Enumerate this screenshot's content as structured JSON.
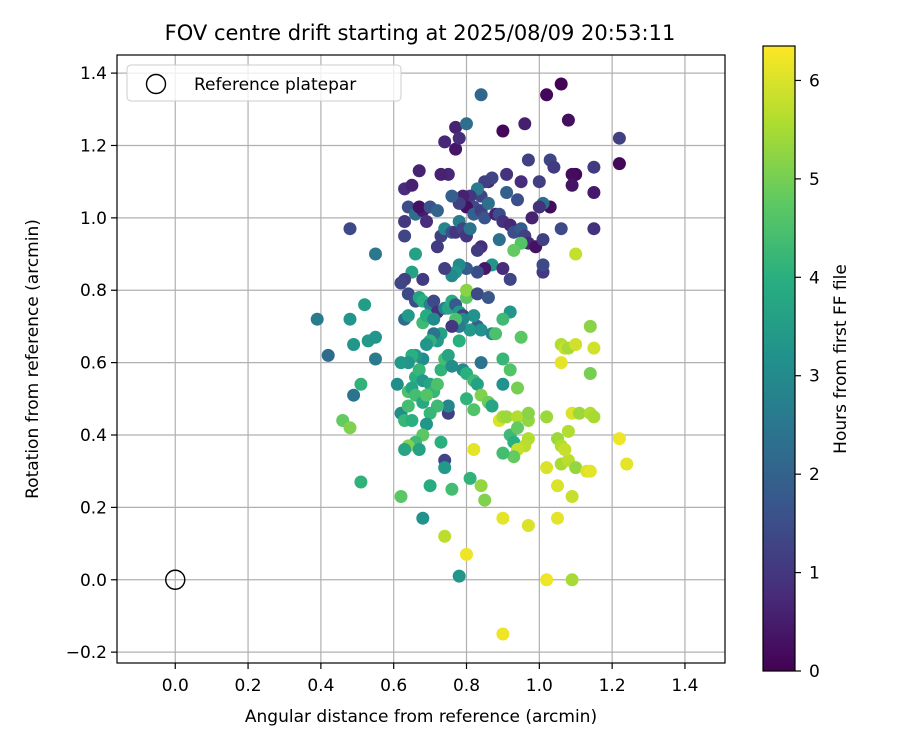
{
  "chart_data": {
    "type": "scatter",
    "title": "FOV centre drift starting at 2025/08/09 20:53:11",
    "xlabel": "Angular distance from reference (arcmin)",
    "ylabel": "Rotation from reference (arcmin)",
    "xlim": [
      -0.16,
      1.51
    ],
    "ylim": [
      -0.23,
      1.45
    ],
    "x_ticks": [
      "0.0",
      "0.2",
      "0.4",
      "0.6",
      "0.8",
      "1.0",
      "1.2",
      "1.4"
    ],
    "y_ticks": [
      "−0.2",
      "0.0",
      "0.2",
      "0.4",
      "0.6",
      "0.8",
      "1.0",
      "1.2",
      "1.4"
    ],
    "grid": true,
    "legend": {
      "position": "top-left",
      "entries": [
        "Reference platepar"
      ]
    },
    "reference_point": {
      "x": 0.0,
      "y": 0.0
    },
    "colorbar": {
      "label": "Hours from first FF file",
      "range": [
        0,
        6.35
      ],
      "ticks": [
        "0",
        "1",
        "2",
        "3",
        "4",
        "5",
        "6"
      ],
      "colormap": "viridis"
    },
    "points": [
      [
        1.06,
        1.37,
        0.05
      ],
      [
        1.02,
        1.34,
        0.12
      ],
      [
        1.08,
        1.27,
        0.25
      ],
      [
        0.9,
        1.24,
        0.1
      ],
      [
        0.96,
        1.26,
        0.55
      ],
      [
        1.22,
        1.22,
        1.2
      ],
      [
        1.22,
        1.15,
        0.1
      ],
      [
        1.15,
        1.14,
        1.1
      ],
      [
        1.1,
        1.12,
        0.1
      ],
      [
        1.09,
        1.12,
        0.2
      ],
      [
        1.09,
        1.09,
        0.35
      ],
      [
        1.15,
        1.07,
        0.45
      ],
      [
        1.03,
        1.16,
        1.3
      ],
      [
        1.04,
        1.14,
        1.1
      ],
      [
        0.97,
        1.16,
        1.2
      ],
      [
        0.95,
        1.1,
        0.8
      ],
      [
        1.0,
        1.1,
        1.15
      ],
      [
        1.03,
        1.03,
        0.2
      ],
      [
        1.01,
        1.04,
        2.3
      ],
      [
        1.0,
        1.03,
        0.9
      ],
      [
        0.94,
        1.05,
        1.5
      ],
      [
        0.91,
        1.07,
        1.9
      ],
      [
        0.91,
        1.12,
        0.9
      ],
      [
        0.86,
        1.1,
        0.7
      ],
      [
        0.87,
        1.11,
        1.3
      ],
      [
        0.85,
        1.1,
        1.2
      ],
      [
        0.84,
        1.06,
        1.3
      ],
      [
        0.83,
        1.08,
        2.6
      ],
      [
        0.81,
        1.06,
        1.0
      ],
      [
        0.82,
        1.03,
        1.4
      ],
      [
        0.8,
        1.03,
        0.3
      ],
      [
        0.79,
        1.06,
        0.6
      ],
      [
        0.78,
        1.04,
        1.2
      ],
      [
        0.76,
        1.06,
        1.9
      ],
      [
        0.75,
        1.12,
        0.7
      ],
      [
        0.73,
        1.12,
        0.6
      ],
      [
        0.67,
        1.13,
        0.6
      ],
      [
        0.63,
        1.08,
        0.8
      ],
      [
        0.65,
        1.09,
        0.6
      ],
      [
        0.77,
        1.25,
        0.6
      ],
      [
        0.8,
        1.26,
        2.3
      ],
      [
        0.77,
        1.19,
        0.4
      ],
      [
        0.78,
        1.22,
        0.8
      ],
      [
        0.74,
        1.21,
        0.7
      ],
      [
        0.84,
        1.34,
        2.1
      ],
      [
        0.63,
        0.99,
        1.0
      ],
      [
        0.63,
        0.95,
        1.3
      ],
      [
        0.64,
        1.03,
        1.5
      ],
      [
        0.66,
        1.01,
        2.3
      ],
      [
        0.68,
        1.02,
        0.5
      ],
      [
        0.67,
        1.03,
        0.3
      ],
      [
        0.69,
        0.99,
        0.8
      ],
      [
        0.7,
        1.03,
        1.6
      ],
      [
        0.72,
        1.02,
        2.0
      ],
      [
        0.73,
        0.95,
        1.2
      ],
      [
        0.74,
        0.97,
        2.9
      ],
      [
        0.76,
        0.96,
        1.6
      ],
      [
        0.77,
        0.96,
        1.0
      ],
      [
        0.78,
        0.99,
        2.7
      ],
      [
        0.79,
        0.97,
        1.3
      ],
      [
        0.8,
        0.95,
        1.0
      ],
      [
        0.81,
        0.97,
        2.4
      ],
      [
        0.82,
        1.01,
        1.9
      ],
      [
        0.84,
        1.02,
        1.2
      ],
      [
        0.85,
        1.0,
        1.6
      ],
      [
        0.86,
        1.04,
        2.3
      ],
      [
        0.88,
        1.01,
        0.6
      ],
      [
        0.89,
        1.01,
        1.5
      ],
      [
        0.9,
        0.99,
        0.9
      ],
      [
        0.92,
        0.98,
        0.7
      ],
      [
        0.93,
        0.96,
        1.5
      ],
      [
        0.95,
        0.97,
        1.8
      ],
      [
        0.96,
        0.95,
        1.2
      ],
      [
        0.97,
        0.93,
        0.7
      ],
      [
        0.95,
        0.93,
        4.6
      ],
      [
        0.93,
        0.91,
        4.8
      ],
      [
        0.89,
        0.94,
        2.3
      ],
      [
        0.87,
        0.87,
        3.3
      ],
      [
        0.84,
        0.92,
        0.8
      ],
      [
        0.83,
        0.91,
        1.1
      ],
      [
        0.85,
        0.86,
        0.4
      ],
      [
        0.83,
        0.85,
        1.5
      ],
      [
        0.8,
        0.86,
        1.8
      ],
      [
        0.78,
        0.87,
        3.0
      ],
      [
        0.77,
        0.85,
        3.3
      ],
      [
        0.76,
        0.84,
        3.0
      ],
      [
        0.74,
        0.86,
        1.2
      ],
      [
        0.72,
        0.92,
        1.1
      ],
      [
        0.66,
        0.9,
        3.6
      ],
      [
        0.65,
        0.85,
        3.6
      ],
      [
        0.63,
        0.83,
        1.2
      ],
      [
        0.62,
        0.82,
        1.3
      ],
      [
        0.68,
        0.83,
        1.1
      ],
      [
        0.64,
        0.79,
        1.4
      ],
      [
        0.66,
        0.77,
        1.5
      ],
      [
        0.67,
        0.78,
        3.6
      ],
      [
        0.68,
        0.77,
        4.0
      ],
      [
        0.7,
        0.76,
        2.8
      ],
      [
        0.71,
        0.77,
        1.4
      ],
      [
        0.72,
        0.74,
        0.9
      ],
      [
        0.74,
        0.75,
        2.8
      ],
      [
        0.75,
        0.75,
        3.7
      ],
      [
        0.76,
        0.77,
        3.9
      ],
      [
        0.77,
        0.76,
        1.8
      ],
      [
        0.78,
        0.74,
        3.4
      ],
      [
        0.79,
        0.73,
        1.2
      ],
      [
        0.8,
        0.78,
        4.7
      ],
      [
        0.8,
        0.8,
        5.2
      ],
      [
        0.83,
        0.79,
        1.4
      ],
      [
        0.86,
        0.78,
        1.7
      ],
      [
        0.83,
        0.7,
        1.9
      ],
      [
        0.82,
        0.73,
        3.2
      ],
      [
        0.81,
        0.69,
        3.4
      ],
      [
        0.79,
        0.72,
        3.0
      ],
      [
        0.78,
        0.7,
        2.6
      ],
      [
        0.77,
        0.72,
        4.5
      ],
      [
        0.76,
        0.7,
        1.0
      ],
      [
        0.73,
        0.68,
        3.6
      ],
      [
        0.72,
        0.66,
        3.4
      ],
      [
        0.71,
        0.68,
        2.4
      ],
      [
        0.7,
        0.66,
        4.1
      ],
      [
        0.69,
        0.65,
        3.3
      ],
      [
        0.68,
        0.61,
        3.1
      ],
      [
        0.66,
        0.62,
        3.3
      ],
      [
        0.65,
        0.62,
        4.0
      ],
      [
        0.64,
        0.6,
        3.3
      ],
      [
        0.66,
        0.56,
        4.0
      ],
      [
        0.67,
        0.58,
        4.2
      ],
      [
        0.68,
        0.55,
        3.4
      ],
      [
        0.7,
        0.54,
        3.7
      ],
      [
        0.71,
        0.52,
        4.2
      ],
      [
        0.72,
        0.54,
        4.5
      ],
      [
        0.73,
        0.58,
        4.1
      ],
      [
        0.74,
        0.61,
        4.4
      ],
      [
        0.75,
        0.62,
        3.7
      ],
      [
        0.76,
        0.59,
        3.1
      ],
      [
        0.78,
        0.66,
        4.0
      ],
      [
        0.79,
        0.58,
        3.0
      ],
      [
        0.8,
        0.57,
        4.0
      ],
      [
        0.82,
        0.55,
        4.3
      ],
      [
        0.83,
        0.54,
        3.6
      ],
      [
        0.84,
        0.6,
        2.4
      ],
      [
        0.84,
        0.69,
        3.2
      ],
      [
        0.87,
        0.68,
        2.9
      ],
      [
        0.88,
        0.68,
        4.5
      ],
      [
        0.9,
        0.61,
        4.2
      ],
      [
        0.92,
        0.58,
        4.6
      ],
      [
        0.92,
        0.74,
        3.3
      ],
      [
        0.95,
        0.67,
        4.7
      ],
      [
        0.9,
        0.72,
        4.3
      ],
      [
        0.8,
        0.5,
        4.1
      ],
      [
        0.82,
        0.47,
        4.6
      ],
      [
        0.84,
        0.51,
        5.1
      ],
      [
        0.86,
        0.49,
        4.9
      ],
      [
        0.87,
        0.48,
        3.7
      ],
      [
        0.89,
        0.44,
        6.0
      ],
      [
        0.9,
        0.45,
        5.5
      ],
      [
        0.91,
        0.45,
        5.4
      ],
      [
        0.92,
        0.4,
        4.3
      ],
      [
        0.93,
        0.38,
        4.0
      ],
      [
        0.94,
        0.45,
        5.6
      ],
      [
        0.94,
        0.42,
        4.8
      ],
      [
        0.97,
        0.44,
        5.3
      ],
      [
        0.97,
        0.46,
        5.2
      ],
      [
        0.97,
        0.39,
        5.6
      ],
      [
        0.96,
        0.37,
        5.7
      ],
      [
        0.94,
        0.36,
        5.8
      ],
      [
        0.93,
        0.34,
        4.8
      ],
      [
        0.9,
        0.35,
        4.4
      ],
      [
        0.9,
        0.54,
        3.2
      ],
      [
        0.94,
        0.53,
        5.0
      ],
      [
        0.75,
        0.46,
        1.2
      ],
      [
        0.75,
        0.48,
        2.9
      ],
      [
        0.72,
        0.48,
        4.3
      ],
      [
        0.7,
        0.46,
        4.2
      ],
      [
        0.69,
        0.43,
        3.3
      ],
      [
        0.68,
        0.4,
        4.7
      ],
      [
        0.66,
        0.38,
        4.3
      ],
      [
        0.64,
        0.37,
        5.1
      ],
      [
        0.63,
        0.36,
        3.7
      ],
      [
        0.62,
        0.46,
        3.1
      ],
      [
        0.63,
        0.44,
        4.2
      ],
      [
        0.65,
        0.44,
        4.0
      ],
      [
        0.64,
        0.48,
        4.4
      ],
      [
        0.61,
        0.54,
        3.1
      ],
      [
        0.64,
        0.52,
        4.5
      ],
      [
        0.65,
        0.53,
        3.7
      ],
      [
        0.66,
        0.51,
        4.4
      ],
      [
        0.68,
        0.49,
        3.8
      ],
      [
        0.69,
        0.51,
        4.6
      ],
      [
        0.67,
        0.36,
        3.6
      ],
      [
        0.62,
        0.23,
        4.7
      ],
      [
        0.68,
        0.17,
        3.2
      ],
      [
        0.7,
        0.26,
        3.9
      ],
      [
        0.73,
        0.38,
        4.0
      ],
      [
        0.74,
        0.33,
        1.3
      ],
      [
        0.74,
        0.31,
        3.4
      ],
      [
        0.74,
        0.12,
        5.7
      ],
      [
        0.76,
        0.25,
        4.4
      ],
      [
        0.78,
        0.01,
        3.3
      ],
      [
        0.8,
        0.07,
        6.2
      ],
      [
        0.81,
        0.28,
        4.1
      ],
      [
        0.82,
        0.36,
        6.1
      ],
      [
        0.84,
        0.26,
        5.3
      ],
      [
        0.85,
        0.22,
        5.1
      ],
      [
        0.9,
        0.17,
        6.1
      ],
      [
        0.97,
        0.15,
        6.0
      ],
      [
        0.9,
        -0.15,
        6.2
      ],
      [
        1.02,
        0.0,
        6.2
      ],
      [
        1.09,
        0.0,
        5.5
      ],
      [
        1.02,
        0.31,
        6.0
      ],
      [
        1.05,
        0.26,
        6.0
      ],
      [
        1.05,
        0.17,
        6.1
      ],
      [
        1.06,
        0.32,
        5.5
      ],
      [
        1.08,
        0.33,
        5.7
      ],
      [
        1.09,
        0.23,
        5.8
      ],
      [
        1.1,
        0.31,
        5.3
      ],
      [
        1.13,
        0.3,
        6.0
      ],
      [
        1.14,
        0.3,
        6.1
      ],
      [
        1.05,
        0.39,
        5.4
      ],
      [
        1.06,
        0.37,
        5.6
      ],
      [
        1.07,
        0.36,
        5.8
      ],
      [
        1.08,
        0.41,
        5.6
      ],
      [
        1.09,
        0.46,
        6.0
      ],
      [
        1.11,
        0.46,
        5.4
      ],
      [
        1.14,
        0.46,
        5.6
      ],
      [
        1.15,
        0.45,
        5.5
      ],
      [
        1.02,
        0.45,
        5.4
      ],
      [
        1.06,
        0.6,
        6.1
      ],
      [
        1.06,
        0.65,
        5.6
      ],
      [
        1.07,
        0.64,
        5.8
      ],
      [
        1.08,
        0.64,
        5.5
      ],
      [
        1.1,
        0.65,
        5.9
      ],
      [
        1.14,
        0.7,
        5.2
      ],
      [
        1.15,
        0.64,
        5.9
      ],
      [
        1.14,
        0.57,
        5.0
      ],
      [
        1.22,
        0.39,
        6.2
      ],
      [
        1.24,
        0.32,
        6.1
      ],
      [
        1.1,
        0.9,
        5.8
      ],
      [
        1.01,
        0.85,
        1.1
      ],
      [
        1.01,
        0.87,
        1.4
      ],
      [
        0.99,
        0.92,
        0.3
      ],
      [
        1.01,
        0.94,
        1.2
      ],
      [
        0.92,
        0.83,
        1.3
      ],
      [
        0.9,
        0.86,
        0.8
      ],
      [
        1.06,
        0.97,
        1.4
      ],
      [
        1.15,
        0.97,
        0.9
      ],
      [
        0.98,
        1.0,
        0.6
      ],
      [
        0.39,
        0.72,
        2.6
      ],
      [
        0.42,
        0.62,
        2.2
      ],
      [
        0.48,
        0.72,
        3.3
      ],
      [
        0.49,
        0.65,
        3.3
      ],
      [
        0.48,
        0.97,
        1.4
      ],
      [
        0.53,
        0.66,
        3.4
      ],
      [
        0.55,
        0.67,
        3.3
      ],
      [
        0.55,
        0.61,
        2.6
      ],
      [
        0.52,
        0.76,
        3.5
      ],
      [
        0.49,
        0.51,
        2.4
      ],
      [
        0.55,
        0.9,
        2.5
      ],
      [
        0.51,
        0.54,
        4.1
      ],
      [
        0.46,
        0.44,
        4.8
      ],
      [
        0.48,
        0.42,
        5.1
      ],
      [
        0.51,
        0.27,
        4.1
      ],
      [
        0.62,
        0.6,
        3.4
      ],
      [
        0.63,
        0.72,
        2.2
      ],
      [
        0.64,
        0.73,
        3.4
      ],
      [
        0.68,
        0.71,
        4.3
      ],
      [
        0.69,
        0.73,
        3.9
      ],
      [
        0.71,
        0.72,
        3.0
      ]
    ]
  }
}
